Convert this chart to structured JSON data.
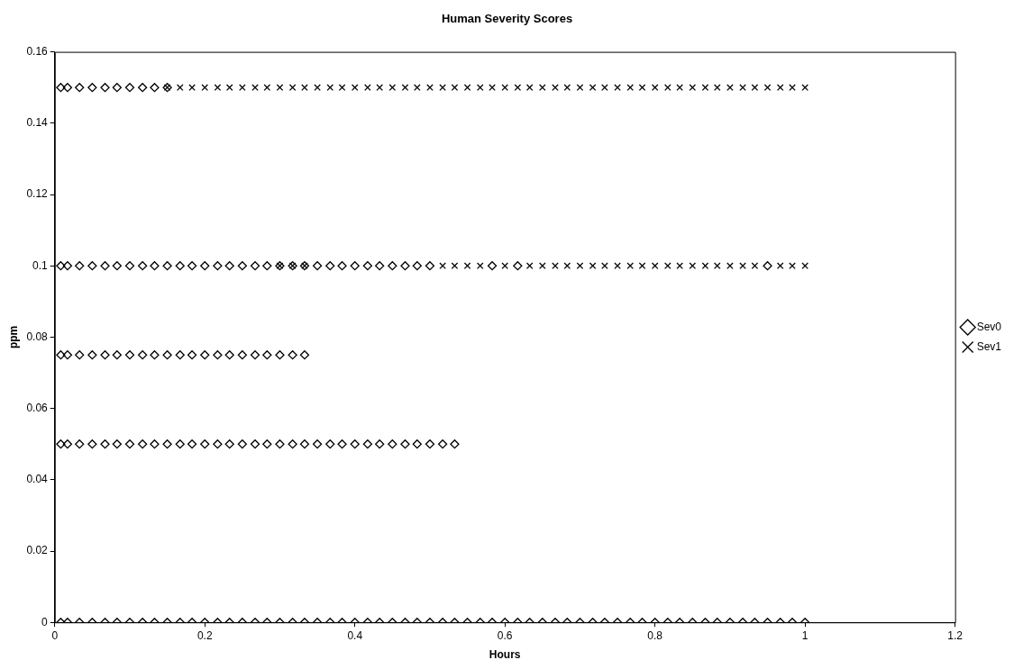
{
  "chart_data": {
    "type": "scatter",
    "title": "Human Severity Scores",
    "xlabel": "Hours",
    "ylabel": "ppm",
    "xlim": [
      0,
      1.2
    ],
    "xticks": [
      0,
      0.2,
      0.4,
      0.6,
      0.8,
      1,
      1.2
    ],
    "ylim": [
      0,
      0.16
    ],
    "yticks": [
      0,
      0.02,
      0.04,
      0.06,
      0.08,
      0.1,
      0.12,
      0.14,
      0.16
    ],
    "legend": "right",
    "grid": false,
    "series": [
      {
        "name": "Sev0",
        "color": "#000000",
        "marker": "diamond",
        "x": [
          0.008,
          0.017,
          0.033,
          0.05,
          0.067,
          0.083,
          0.1,
          0.117,
          0.133,
          0.15,
          0.008,
          0.017,
          0.033,
          0.05,
          0.067,
          0.083,
          0.1,
          0.117,
          0.133,
          0.15,
          0.167,
          0.183,
          0.2,
          0.217,
          0.233,
          0.25,
          0.267,
          0.283,
          0.3,
          0.317,
          0.333,
          0.35,
          0.367,
          0.383,
          0.4,
          0.417,
          0.433,
          0.45,
          0.467,
          0.483,
          0.5,
          0.583,
          0.617,
          0.95,
          0.008,
          0.017,
          0.033,
          0.05,
          0.067,
          0.083,
          0.1,
          0.117,
          0.133,
          0.15,
          0.167,
          0.183,
          0.2,
          0.217,
          0.233,
          0.25,
          0.267,
          0.283,
          0.3,
          0.317,
          0.333,
          0.008,
          0.017,
          0.033,
          0.05,
          0.067,
          0.083,
          0.1,
          0.117,
          0.133,
          0.15,
          0.167,
          0.183,
          0.2,
          0.217,
          0.233,
          0.25,
          0.267,
          0.283,
          0.3,
          0.317,
          0.333,
          0.35,
          0.367,
          0.383,
          0.4,
          0.417,
          0.433,
          0.45,
          0.467,
          0.483,
          0.5,
          0.517,
          0.533,
          0.008,
          0.017,
          0.033,
          0.05,
          0.067,
          0.083,
          0.1,
          0.117,
          0.133,
          0.15,
          0.167,
          0.183,
          0.2,
          0.217,
          0.233,
          0.25,
          0.267,
          0.283,
          0.3,
          0.317,
          0.333,
          0.35,
          0.367,
          0.383,
          0.4,
          0.417,
          0.433,
          0.45,
          0.467,
          0.483,
          0.5,
          0.517,
          0.533,
          0.55,
          0.567,
          0.583,
          0.6,
          0.617,
          0.633,
          0.65,
          0.667,
          0.683,
          0.7,
          0.717,
          0.733,
          0.75,
          0.767,
          0.783,
          0.8,
          0.817,
          0.833,
          0.85,
          0.867,
          0.883,
          0.9,
          0.917,
          0.933,
          0.95,
          0.967,
          0.983,
          1
        ],
        "values": [
          0.15,
          0.15,
          0.15,
          0.15,
          0.15,
          0.15,
          0.15,
          0.15,
          0.15,
          0.15,
          0.1,
          0.1,
          0.1,
          0.1,
          0.1,
          0.1,
          0.1,
          0.1,
          0.1,
          0.1,
          0.1,
          0.1,
          0.1,
          0.1,
          0.1,
          0.1,
          0.1,
          0.1,
          0.1,
          0.1,
          0.1,
          0.1,
          0.1,
          0.1,
          0.1,
          0.1,
          0.1,
          0.1,
          0.1,
          0.1,
          0.1,
          0.1,
          0.1,
          0.1,
          0.075,
          0.075,
          0.075,
          0.075,
          0.075,
          0.075,
          0.075,
          0.075,
          0.075,
          0.075,
          0.075,
          0.075,
          0.075,
          0.075,
          0.075,
          0.075,
          0.075,
          0.075,
          0.075,
          0.075,
          0.075,
          0.05,
          0.05,
          0.05,
          0.05,
          0.05,
          0.05,
          0.05,
          0.05,
          0.05,
          0.05,
          0.05,
          0.05,
          0.05,
          0.05,
          0.05,
          0.05,
          0.05,
          0.05,
          0.05,
          0.05,
          0.05,
          0.05,
          0.05,
          0.05,
          0.05,
          0.05,
          0.05,
          0.05,
          0.05,
          0.05,
          0.05,
          0.05,
          0.05,
          0,
          0,
          0,
          0,
          0,
          0,
          0,
          0,
          0,
          0,
          0,
          0,
          0,
          0,
          0,
          0,
          0,
          0,
          0,
          0,
          0,
          0,
          0,
          0,
          0,
          0,
          0,
          0,
          0,
          0,
          0,
          0,
          0,
          0,
          0,
          0,
          0,
          0,
          0,
          0,
          0,
          0,
          0,
          0,
          0,
          0,
          0,
          0,
          0,
          0,
          0,
          0,
          0,
          0,
          0,
          0,
          0,
          0,
          0,
          0,
          0
        ]
      },
      {
        "name": "Sev1",
        "color": "#000000",
        "marker": "cross",
        "x": [
          0.15,
          0.167,
          0.183,
          0.2,
          0.217,
          0.233,
          0.25,
          0.267,
          0.283,
          0.3,
          0.317,
          0.333,
          0.35,
          0.367,
          0.383,
          0.4,
          0.417,
          0.433,
          0.45,
          0.467,
          0.483,
          0.5,
          0.517,
          0.533,
          0.55,
          0.567,
          0.583,
          0.6,
          0.617,
          0.633,
          0.65,
          0.667,
          0.683,
          0.7,
          0.717,
          0.733,
          0.75,
          0.767,
          0.783,
          0.8,
          0.817,
          0.833,
          0.85,
          0.867,
          0.883,
          0.9,
          0.917,
          0.933,
          0.95,
          0.967,
          0.983,
          1,
          0.3,
          0.317,
          0.333,
          0.517,
          0.533,
          0.55,
          0.567,
          0.6,
          0.633,
          0.65,
          0.667,
          0.683,
          0.7,
          0.717,
          0.733,
          0.75,
          0.767,
          0.783,
          0.8,
          0.817,
          0.833,
          0.85,
          0.867,
          0.883,
          0.9,
          0.917,
          0.933,
          0.967,
          0.983,
          1
        ],
        "values": [
          0.15,
          0.15,
          0.15,
          0.15,
          0.15,
          0.15,
          0.15,
          0.15,
          0.15,
          0.15,
          0.15,
          0.15,
          0.15,
          0.15,
          0.15,
          0.15,
          0.15,
          0.15,
          0.15,
          0.15,
          0.15,
          0.15,
          0.15,
          0.15,
          0.15,
          0.15,
          0.15,
          0.15,
          0.15,
          0.15,
          0.15,
          0.15,
          0.15,
          0.15,
          0.15,
          0.15,
          0.15,
          0.15,
          0.15,
          0.15,
          0.15,
          0.15,
          0.15,
          0.15,
          0.15,
          0.15,
          0.15,
          0.15,
          0.15,
          0.15,
          0.15,
          0.15,
          0.1,
          0.1,
          0.1,
          0.1,
          0.1,
          0.1,
          0.1,
          0.1,
          0.1,
          0.1,
          0.1,
          0.1,
          0.1,
          0.1,
          0.1,
          0.1,
          0.1,
          0.1,
          0.1,
          0.1,
          0.1,
          0.1,
          0.1,
          0.1,
          0.1,
          0.1,
          0.1,
          0.1,
          0.1,
          0.1
        ]
      }
    ]
  }
}
